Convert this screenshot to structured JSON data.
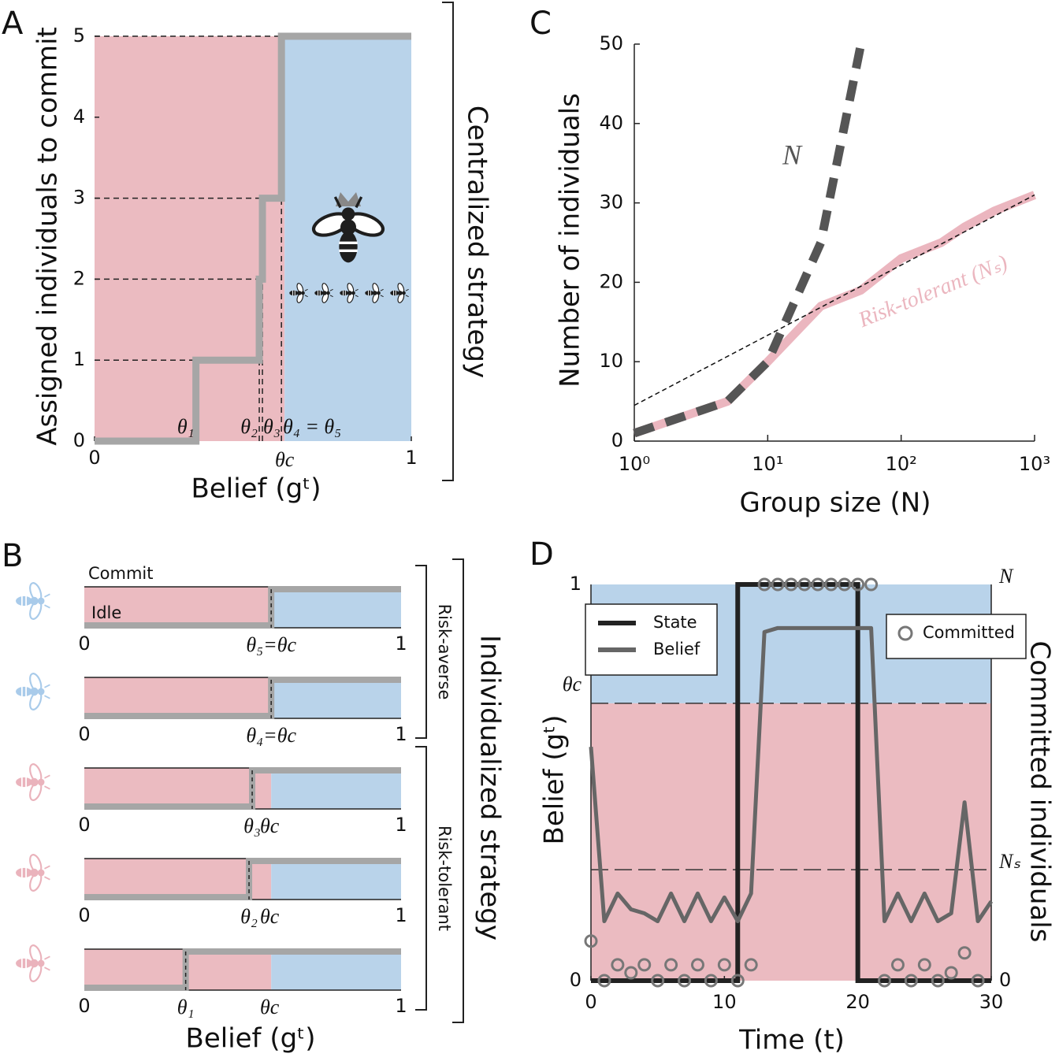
{
  "chart_data": [
    {
      "type": "step",
      "label": "A",
      "xlabel": "Belief (gᵗ)",
      "ylabel": "Assigned individuals to commit",
      "side_label": "Centralized strategy",
      "xlim": [
        0,
        1
      ],
      "xticks": [
        0,
        1
      ],
      "ylim": [
        0,
        5
      ],
      "yticks": [
        0,
        1,
        2,
        3,
        4,
        5
      ],
      "thresholds": [
        0.32,
        0.52,
        0.53,
        0.59,
        0.59
      ],
      "threshold_labels": [
        "θ₁",
        "θ₂",
        "θ₃",
        "θ₄ = θ₅"
      ],
      "theta_c": 0.6,
      "theta_c_label": "θc",
      "idle_color": "#ebbbc1",
      "commit_color": "#b9d3ea",
      "step_color": "#a6a6a6"
    },
    {
      "type": "threshold-strips",
      "label": "B",
      "xlabel": "Belief (gᵗ)",
      "side_label": "Individualized strategy",
      "state_labels": [
        "Commit",
        "Idle"
      ],
      "xlim": [
        0,
        1
      ],
      "xticks": [
        0,
        1
      ],
      "theta_c": 0.59,
      "theta_c_label": "θc",
      "idle_color": "#ebbbc1",
      "commit_color": "#b9d3ea",
      "step_color": "#a6a6a6",
      "groups": [
        {
          "name": "Risk-averse",
          "color": "#a9cbea",
          "rows": [
            {
              "threshold": 0.59,
              "threshold_label": "θ₅=θc"
            },
            {
              "threshold": 0.59,
              "threshold_label": "θ₄=θc"
            }
          ]
        },
        {
          "name": "Risk-tolerant",
          "color": "#eab3bc",
          "rows": [
            {
              "threshold": 0.53,
              "threshold_label": "θ₃"
            },
            {
              "threshold": 0.52,
              "threshold_label": "θ₂"
            },
            {
              "threshold": 0.32,
              "threshold_label": "θ₁"
            }
          ]
        }
      ]
    },
    {
      "type": "line",
      "label": "C",
      "xlabel": "Group size (N)",
      "ylabel": "Number of individuals",
      "log_x": true,
      "xlim": [
        1,
        1000
      ],
      "xticks": [
        {
          "value": 1,
          "label": "10⁰"
        },
        {
          "value": 10,
          "label": "10¹"
        },
        {
          "value": 100,
          "label": "10²"
        },
        {
          "value": 1000,
          "label": "10³"
        }
      ],
      "ylim": [
        0,
        50
      ],
      "yticks": [
        0,
        10,
        20,
        30,
        40,
        50
      ],
      "series": [
        {
          "name": "Risk-tolerant (Nₛ)",
          "color": "#ebb6bf",
          "dashed": false,
          "x": [
            1,
            5,
            10,
            25,
            50,
            100,
            200,
            300,
            500,
            1000
          ],
          "values": [
            1,
            5,
            10,
            17,
            19,
            23,
            25,
            27,
            29,
            31
          ]
        },
        {
          "name": "N",
          "color": "#555555",
          "dashed": true,
          "x": [
            1,
            5,
            10,
            25,
            50
          ],
          "values": [
            1,
            5,
            10,
            25,
            50
          ]
        }
      ],
      "fit": {
        "color": "#111111",
        "x": [
          1,
          1000
        ],
        "values": [
          4.5,
          31
        ]
      }
    },
    {
      "type": "time-series",
      "label": "D",
      "xlabel": "Time (t)",
      "ylabel": "Belief (gᵗ)",
      "y2label": "Committed individuals",
      "xlim": [
        0,
        30
      ],
      "xticks": [
        0,
        10,
        20,
        30
      ],
      "ylim": [
        0,
        1
      ],
      "yticks": [
        0,
        {
          "value": 0.7,
          "label": "θc"
        },
        1
      ],
      "y2lim": [
        0,
        1
      ],
      "y2ticks": [
        0,
        {
          "value": 0.28,
          "label": "Nₛ"
        },
        {
          "value": 1,
          "label": "N"
        }
      ],
      "threshold": 0.7,
      "idle_color": "#ebbbc1",
      "commit_color": "#b9d3ea",
      "series": [
        {
          "name": "State",
          "color": "#222222",
          "drawstyle": "steps-post",
          "x": [
            0,
            11,
            20,
            30
          ],
          "values": [
            0,
            1,
            0,
            0
          ]
        },
        {
          "name": "Belief",
          "color": "#666666",
          "drawstyle": "line",
          "x": [
            0,
            1,
            2,
            3,
            4,
            5,
            6,
            7,
            8,
            9,
            10,
            11,
            12,
            13,
            14,
            15,
            16,
            17,
            18,
            19,
            20,
            21,
            22,
            23,
            24,
            25,
            26,
            27,
            28,
            29,
            30
          ],
          "values": [
            0.59,
            0.15,
            0.22,
            0.18,
            0.17,
            0.15,
            0.22,
            0.15,
            0.22,
            0.15,
            0.21,
            0.15,
            0.22,
            0.88,
            0.89,
            0.89,
            0.89,
            0.89,
            0.89,
            0.89,
            0.89,
            0.89,
            0.15,
            0.22,
            0.15,
            0.22,
            0.15,
            0.17,
            0.45,
            0.15,
            0.2
          ]
        },
        {
          "name": "Committed",
          "color": "#777777",
          "drawstyle": "markers",
          "axis": "y2",
          "x": [
            0,
            1,
            2,
            3,
            4,
            5,
            6,
            7,
            8,
            9,
            10,
            11,
            12,
            13,
            14,
            15,
            16,
            17,
            18,
            19,
            20,
            21,
            22,
            23,
            24,
            25,
            26,
            27,
            28,
            29
          ],
          "values": [
            0.1,
            0,
            0.04,
            0.02,
            0.04,
            0,
            0.04,
            0,
            0.04,
            0,
            0.04,
            0,
            0.04,
            1,
            1,
            1,
            1,
            1,
            1,
            1,
            1,
            1,
            0,
            0.04,
            0,
            0.04,
            0,
            0.02,
            0.07,
            0
          ]
        }
      ]
    }
  ]
}
